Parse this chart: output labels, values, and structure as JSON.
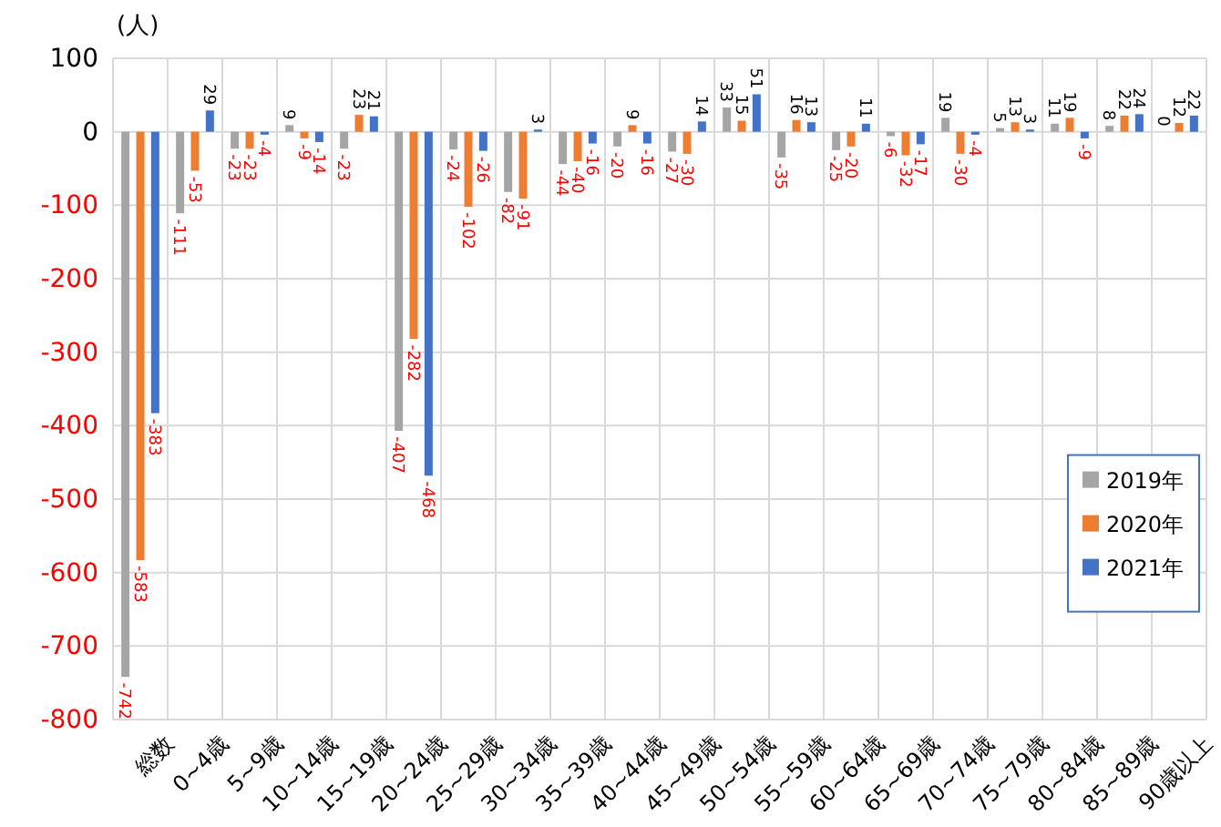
{
  "chart_data": {
    "type": "bar",
    "ylabel": "(人)",
    "categories": [
      "総数",
      "0~4歳",
      "5~9歳",
      "10~14歳",
      "15~19歳",
      "20~24歳",
      "25~29歳",
      "30~34歳",
      "35~39歳",
      "40~44歳",
      "45~49歳",
      "50~54歳",
      "55~59歳",
      "60~64歳",
      "65~69歳",
      "70~74歳",
      "75~79歳",
      "80~84歳",
      "85~89歳",
      "90歳以上"
    ],
    "series": [
      {
        "name": "2019年",
        "color": "#a5a5a5",
        "values": [
          -742,
          -111,
          -23,
          9,
          -23,
          -407,
          -24,
          -82,
          -44,
          -20,
          -27,
          33,
          -35,
          -25,
          -6,
          19,
          5,
          11,
          8,
          0
        ]
      },
      {
        "name": "2020年",
        "color": "#ed7d31",
        "values": [
          -583,
          -53,
          -23,
          -9,
          23,
          -282,
          -102,
          -91,
          -40,
          9,
          -30,
          15,
          16,
          -20,
          -32,
          -30,
          13,
          19,
          22,
          12
        ]
      },
      {
        "name": "2021年",
        "color": "#4472c4",
        "values": [
          -383,
          29,
          -4,
          -14,
          21,
          -468,
          -26,
          3,
          -16,
          -16,
          14,
          51,
          13,
          11,
          -17,
          -4,
          3,
          -9,
          24,
          22
        ]
      }
    ],
    "ylim": [
      -800,
      100
    ],
    "yticks": [
      100,
      0,
      -100,
      -200,
      -300,
      -400,
      -500,
      -600,
      -700,
      -800
    ],
    "grid": true,
    "legend": "right",
    "data_labels": true
  }
}
